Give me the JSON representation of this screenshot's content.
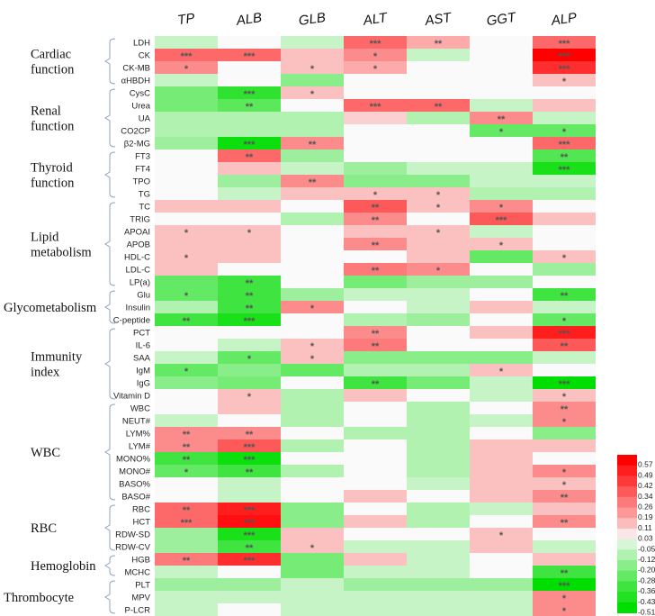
{
  "chart_data": {
    "type": "heatmap",
    "title": "",
    "columns": [
      "TP",
      "ALB",
      "GLB",
      "ALT",
      "AST",
      "GGT",
      "ALP"
    ],
    "groups": [
      {
        "label": [
          "Cardiac",
          "function"
        ],
        "rows": [
          0,
          3
        ]
      },
      {
        "label": [
          "Renal",
          "function"
        ],
        "rows": [
          4,
          8
        ]
      },
      {
        "label": [
          "Thyroid",
          "function"
        ],
        "rows": [
          9,
          12
        ]
      },
      {
        "label": [
          "Lipid",
          "metabolism"
        ],
        "rows": [
          13,
          19
        ]
      },
      {
        "label": [
          "Glycometabolism"
        ],
        "rows": [
          20,
          22
        ]
      },
      {
        "label": [
          "Immunity",
          "index"
        ],
        "rows": [
          23,
          28
        ]
      },
      {
        "label": [
          "WBC"
        ],
        "rows": [
          29,
          36
        ]
      },
      {
        "label": [
          "RBC"
        ],
        "rows": [
          37,
          40
        ]
      },
      {
        "label": [
          "Hemoglobin"
        ],
        "rows": [
          41,
          42
        ]
      },
      {
        "label": [
          "Thrombocyte"
        ],
        "rows": [
          43,
          45
        ]
      }
    ],
    "rows": [
      {
        "name": "LDH",
        "values": [
          -0.08,
          0,
          -0.08,
          0.3,
          0.15,
          0,
          0.3
        ],
        "stars": [
          "",
          "",
          "",
          "***",
          "**",
          "",
          "***"
        ]
      },
      {
        "name": "CK",
        "values": [
          0.3,
          0.3,
          0.1,
          0.22,
          -0.08,
          0,
          0.57
        ],
        "stars": [
          "***",
          "***",
          "",
          "*",
          "",
          "",
          "***"
        ]
      },
      {
        "name": "CK-MB",
        "values": [
          0.22,
          0,
          0.1,
          0.15,
          0,
          0,
          0.45
        ],
        "stars": [
          "*",
          "",
          "*",
          "*",
          "",
          "",
          "***"
        ]
      },
      {
        "name": "αHBDH",
        "values": [
          -0.08,
          0,
          -0.2,
          0,
          0,
          0,
          0.1
        ],
        "stars": [
          "",
          "",
          "",
          "",
          "",
          "",
          "*"
        ]
      },
      {
        "name": "CysC",
        "values": [
          -0.24,
          -0.4,
          0.1,
          0,
          0,
          0,
          0
        ],
        "stars": [
          "",
          "***",
          "*",
          "",
          "",
          "",
          ""
        ]
      },
      {
        "name": "Urea",
        "values": [
          -0.24,
          -0.3,
          0,
          0.3,
          0.3,
          -0.08,
          0.1
        ],
        "stars": [
          "",
          "**",
          "",
          "***",
          "**",
          "",
          ""
        ]
      },
      {
        "name": "UA",
        "values": [
          -0.12,
          -0.12,
          -0.12,
          0.07,
          -0.12,
          0.22,
          -0.08
        ],
        "stars": [
          "",
          "",
          "",
          "",
          "",
          "**",
          ""
        ]
      },
      {
        "name": "CO2CP",
        "values": [
          -0.12,
          -0.12,
          -0.12,
          0,
          0,
          -0.28,
          -0.28
        ],
        "stars": [
          "",
          "",
          "",
          "",
          "",
          "*",
          "*"
        ]
      },
      {
        "name": "β2-MG",
        "values": [
          -0.16,
          -0.48,
          0.22,
          0,
          0,
          0,
          0.3
        ],
        "stars": [
          "",
          "***",
          "**",
          "",
          "",
          "",
          "***"
        ]
      },
      {
        "name": "FT3",
        "values": [
          0,
          0.3,
          -0.16,
          0,
          0,
          0,
          -0.32
        ],
        "stars": [
          "",
          "**",
          "",
          "",
          "",
          "",
          "**"
        ]
      },
      {
        "name": "FT4",
        "values": [
          0,
          0.1,
          -0.08,
          -0.16,
          -0.08,
          -0.08,
          -0.45
        ],
        "stars": [
          "",
          "",
          "",
          "",
          "",
          "",
          "***"
        ]
      },
      {
        "name": "TPO",
        "values": [
          0,
          -0.16,
          0.22,
          -0.2,
          -0.2,
          -0.08,
          -0.08
        ],
        "stars": [
          "",
          "",
          "**",
          "",
          "",
          "",
          ""
        ]
      },
      {
        "name": "TG",
        "values": [
          0,
          -0.08,
          0.1,
          0.1,
          0.1,
          -0.12,
          -0.12
        ],
        "stars": [
          "",
          "",
          "",
          "*",
          "*",
          "",
          ""
        ]
      },
      {
        "name": "TC",
        "values": [
          0.1,
          0.1,
          0,
          0.34,
          0.1,
          0.22,
          0
        ],
        "stars": [
          "",
          "",
          "",
          "**",
          "*",
          "*",
          ""
        ]
      },
      {
        "name": "TRIG",
        "values": [
          0,
          0,
          -0.12,
          0.22,
          0,
          0.34,
          0.1
        ],
        "stars": [
          "",
          "",
          "",
          "**",
          "",
          "***",
          ""
        ]
      },
      {
        "name": "APOAI",
        "values": [
          0.1,
          0.1,
          0,
          0.1,
          0.1,
          -0.08,
          0
        ],
        "stars": [
          "*",
          "*",
          "",
          "",
          "*",
          "",
          ""
        ]
      },
      {
        "name": "APOB",
        "values": [
          0.1,
          0.1,
          0,
          0.22,
          0.1,
          0.1,
          0
        ],
        "stars": [
          "",
          "",
          "",
          "**",
          "",
          "*",
          ""
        ]
      },
      {
        "name": "HDL-C",
        "values": [
          0.1,
          0.1,
          0,
          0,
          0.1,
          -0.28,
          0.1
        ],
        "stars": [
          "*",
          "",
          "",
          "",
          "",
          "",
          "*"
        ]
      },
      {
        "name": "LDL-C",
        "values": [
          0.1,
          0,
          0,
          0.26,
          0.22,
          0,
          -0.16
        ],
        "stars": [
          "",
          "",
          "",
          "**",
          "*",
          "",
          ""
        ]
      },
      {
        "name": "LP(a)",
        "values": [
          -0.28,
          -0.36,
          0,
          -0.24,
          -0.16,
          -0.16,
          0
        ],
        "stars": [
          "",
          "**",
          "",
          "",
          "",
          "",
          ""
        ]
      },
      {
        "name": "Glu",
        "values": [
          -0.28,
          -0.36,
          -0.16,
          -0.08,
          -0.08,
          0,
          -0.36
        ],
        "stars": [
          "*",
          "**",
          "",
          "",
          "",
          "",
          "**"
        ]
      },
      {
        "name": "Insulin",
        "values": [
          -0.12,
          -0.36,
          0.22,
          0,
          -0.08,
          0.1,
          -0.08
        ],
        "stars": [
          "",
          "**",
          "*",
          "",
          "",
          "",
          ""
        ]
      },
      {
        "name": "C-peptide",
        "values": [
          -0.36,
          -0.45,
          0,
          -0.12,
          -0.16,
          0,
          -0.28
        ],
        "stars": [
          "**",
          "***",
          "",
          "",
          "",
          "",
          "*"
        ]
      },
      {
        "name": "PCT",
        "values": [
          0,
          0,
          0,
          0.22,
          0,
          0.1,
          0.49
        ],
        "stars": [
          "",
          "",
          "",
          "**",
          "",
          "",
          "***"
        ]
      },
      {
        "name": "IL-6",
        "values": [
          0,
          -0.08,
          0.1,
          0.26,
          0,
          0,
          0.34
        ],
        "stars": [
          "",
          "",
          "*",
          "**",
          "",
          "",
          "**"
        ]
      },
      {
        "name": "SAA",
        "values": [
          -0.08,
          -0.28,
          0.1,
          -0.2,
          -0.2,
          -0.2,
          -0.08
        ],
        "stars": [
          "",
          "*",
          "*",
          "",
          "",
          "",
          ""
        ]
      },
      {
        "name": "IgM",
        "values": [
          -0.28,
          -0.2,
          -0.28,
          -0.12,
          -0.12,
          0.1,
          0
        ],
        "stars": [
          "*",
          "",
          "",
          "",
          "",
          "*",
          ""
        ]
      },
      {
        "name": "IgG",
        "values": [
          -0.2,
          -0.24,
          0,
          -0.36,
          -0.24,
          -0.08,
          -0.51
        ],
        "stars": [
          "",
          "",
          "",
          "**",
          "",
          "",
          "***"
        ]
      },
      {
        "name": "Vitamin D",
        "values": [
          0,
          0.1,
          -0.12,
          0.1,
          0,
          -0.08,
          0.1
        ],
        "stars": [
          "",
          "*",
          "",
          "",
          "",
          "",
          "*"
        ]
      },
      {
        "name": "WBC",
        "values": [
          0,
          0.1,
          -0.12,
          0,
          -0.12,
          0,
          0.22
        ],
        "stars": [
          "",
          "",
          "",
          "",
          "",
          "",
          "**"
        ]
      },
      {
        "name": "NEUT#",
        "values": [
          -0.08,
          0,
          -0.12,
          0,
          -0.12,
          -0.08,
          0.22
        ],
        "stars": [
          "",
          "",
          "",
          "",
          "",
          "",
          "*"
        ]
      },
      {
        "name": "LYM%",
        "values": [
          0.22,
          0.22,
          0,
          -0.12,
          -0.12,
          0,
          -0.2
        ],
        "stars": [
          "**",
          "**",
          "",
          "",
          "",
          "",
          ""
        ]
      },
      {
        "name": "LYM#",
        "values": [
          0.22,
          0.34,
          -0.12,
          0,
          -0.12,
          0.1,
          0.1
        ],
        "stars": [
          "**",
          "***",
          "",
          "",
          "",
          "",
          ""
        ]
      },
      {
        "name": "MONO%",
        "values": [
          -0.36,
          -0.48,
          0,
          0,
          -0.12,
          0.1,
          0
        ],
        "stars": [
          "**",
          "***",
          "",
          "",
          "",
          "",
          ""
        ]
      },
      {
        "name": "MONO#",
        "values": [
          -0.28,
          -0.36,
          -0.12,
          0,
          -0.12,
          0.1,
          0.22
        ],
        "stars": [
          "*",
          "**",
          "",
          "",
          "",
          "",
          "*"
        ]
      },
      {
        "name": "BASO%",
        "values": [
          0,
          -0.08,
          0,
          0,
          -0.08,
          0.1,
          0.1
        ],
        "stars": [
          "",
          "",
          "",
          "",
          "",
          "",
          "*"
        ]
      },
      {
        "name": "BASO#",
        "values": [
          0,
          -0.08,
          0,
          0.1,
          0,
          0.1,
          0.22
        ],
        "stars": [
          "",
          "",
          "",
          "",
          "",
          "",
          "**"
        ]
      },
      {
        "name": "RBC",
        "values": [
          0.3,
          0.49,
          -0.2,
          0,
          -0.12,
          -0.08,
          0.1
        ],
        "stars": [
          "**",
          "***",
          "",
          "",
          "",
          "",
          ""
        ]
      },
      {
        "name": "HCT",
        "values": [
          0.3,
          0.53,
          -0.2,
          0.1,
          -0.12,
          0,
          0.22
        ],
        "stars": [
          "***",
          "***",
          "",
          "",
          "",
          "",
          "**"
        ]
      },
      {
        "name": "RDW-SD",
        "values": [
          -0.16,
          -0.45,
          0.1,
          0,
          0,
          0.1,
          0
        ],
        "stars": [
          "",
          "***",
          "",
          "",
          "",
          "*",
          ""
        ]
      },
      {
        "name": "RDW-CV",
        "values": [
          -0.16,
          -0.36,
          0.1,
          -0.08,
          -0.08,
          0.1,
          -0.08
        ],
        "stars": [
          "",
          "**",
          "*",
          "",
          "",
          "",
          ""
        ]
      },
      {
        "name": "HGB",
        "values": [
          0.26,
          0.45,
          -0.24,
          0.1,
          -0.08,
          0,
          0.1
        ],
        "stars": [
          "**",
          "***",
          "",
          "",
          "",
          "",
          ""
        ]
      },
      {
        "name": "MCHC",
        "values": [
          -0.08,
          0,
          -0.24,
          -0.08,
          -0.08,
          0,
          -0.36
        ],
        "stars": [
          "",
          "",
          "",
          "",
          "",
          "",
          "**"
        ]
      },
      {
        "name": "PLT",
        "values": [
          -0.16,
          -0.16,
          -0.08,
          -0.16,
          -0.16,
          -0.16,
          -0.51
        ],
        "stars": [
          "",
          "",
          "",
          "",
          "",
          "",
          "***"
        ]
      },
      {
        "name": "MPV",
        "values": [
          -0.08,
          -0.08,
          -0.08,
          -0.08,
          -0.08,
          -0.08,
          0.22
        ],
        "stars": [
          "",
          "",
          "",
          "",
          "",
          "",
          "*"
        ]
      },
      {
        "name": "P-LCR",
        "values": [
          -0.08,
          0,
          -0.08,
          -0.08,
          -0.08,
          -0.08,
          0.22
        ],
        "stars": [
          "",
          "",
          "",
          "",
          "",
          "",
          "*"
        ]
      }
    ],
    "colorbar": {
      "ticks": [
        "0.57",
        "0.49",
        "0.42",
        "0.34",
        "0.26",
        "0.19",
        "0.11",
        "0.03",
        "-0.05",
        "-0.12",
        "-0.20",
        "-0.28",
        "-0.36",
        "-0.43",
        "-0.51"
      ],
      "range": [
        -0.51,
        0.57
      ],
      "pos_color": "#ff0000",
      "neg_color": "#00dd00",
      "mid_color": "#fafafa"
    }
  }
}
